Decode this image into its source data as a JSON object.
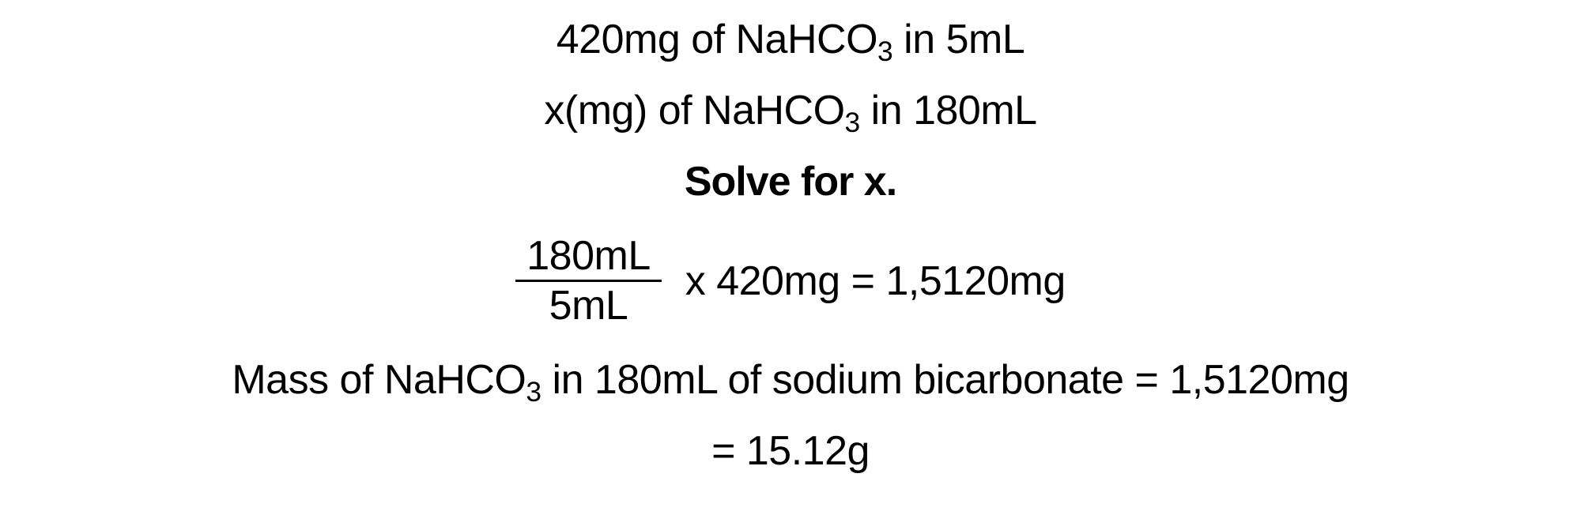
{
  "text_color": "#000000",
  "background_color": "#ffffff",
  "font_size_pt": 39,
  "lines": {
    "l1a": "420mg of NaHCO",
    "l1sub": "3",
    "l1b": " in 5mL",
    "l2a": "x(mg) of NaHCO",
    "l2sub": "3",
    "l2b": " in 180mL",
    "l3": "Solve for x.",
    "frac_num": "180mL",
    "frac_den": "5mL",
    "l4b": " x 420mg = 1,5120mg",
    "l5a": "Mass of NaHCO",
    "l5sub": "3",
    "l5b": " in 180mL of sodium bicarbonate = 1,5120mg",
    "l6": "= 15.12g"
  }
}
